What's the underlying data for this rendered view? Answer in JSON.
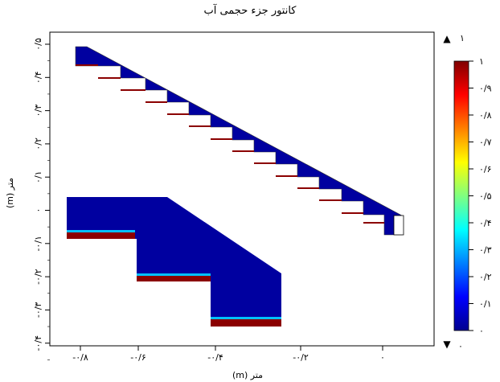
{
  "title": "کانتور جزء حجمی آب",
  "x_axis": {
    "label": "متر (m)",
    "ticks": [
      "-۰/۸",
      "-۰/۶",
      "-۰/۴",
      "-۰/۲",
      "۰"
    ]
  },
  "y_axis": {
    "label": "متر (m)",
    "ticks": [
      "۰/۵",
      "۰/۴",
      "۰/۳",
      "۰/۲",
      "۰/۱",
      "۰",
      "-۰/۱",
      "-۰/۲",
      "-۰/۳",
      "-۰/۴"
    ]
  },
  "colorbar": {
    "top_value": "۱",
    "bottom_value": "۰",
    "max_marker": "▲",
    "min_marker": "▼",
    "ticks": [
      "۱",
      "۰/۹",
      "۰/۸",
      "۰/۷",
      "۰/۶",
      "۰/۵",
      "۰/۴",
      "۰/۳",
      "۰/۲",
      "۰/۱",
      "۰"
    ],
    "colors": [
      "#00008f",
      "#0000ff",
      "#0080ff",
      "#00ffff",
      "#80ff80",
      "#ffff00",
      "#ff8000",
      "#ff0000",
      "#800000"
    ]
  },
  "colors": {
    "water": "#8b0000",
    "air": "#0000a0",
    "interface": "#00c0ff"
  }
}
